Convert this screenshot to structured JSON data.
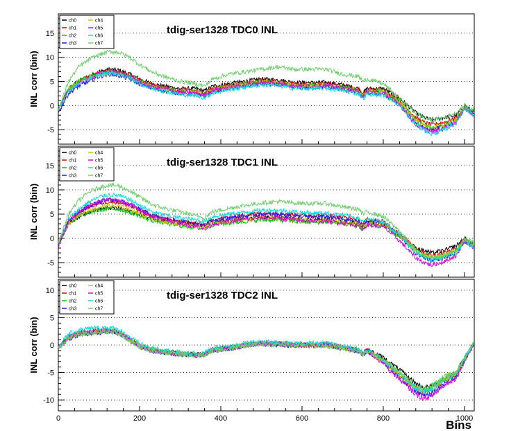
{
  "chart_data": [
    {
      "type": "line",
      "title": "tdig-ser1328 TDC0 INL",
      "ylabel": "INL corr (bin)",
      "xlabel": "",
      "xlim": [
        0,
        1024
      ],
      "ylim": [
        -8,
        19
      ],
      "yticks": [
        -5,
        0,
        5,
        10,
        15
      ],
      "xticks": [
        0,
        200,
        400,
        600,
        800,
        1000
      ],
      "xtick_labels_shown": false,
      "legend": "top-left",
      "gridlines": "dotted horizontal at y ticks",
      "x": [
        0,
        25,
        50,
        75,
        100,
        125,
        150,
        175,
        200,
        230,
        260,
        300,
        340,
        360,
        380,
        420,
        460,
        500,
        540,
        580,
        620,
        660,
        700,
        740,
        750,
        760,
        800,
        840,
        880,
        900,
        920,
        950,
        980,
        1000,
        1024
      ],
      "series": [
        {
          "name": "ch0",
          "color": "#000000",
          "values": [
            -1,
            3.5,
            5,
            6,
            7,
            7.5,
            7.3,
            6.5,
            5.5,
            4.5,
            4,
            3.5,
            3.5,
            3,
            4,
            4.5,
            5,
            5.5,
            5.3,
            4.8,
            4.7,
            4.8,
            4.3,
            3.5,
            2.5,
            3.5,
            3.5,
            1.5,
            -1.5,
            -2.5,
            -3,
            -2.5,
            -2,
            0,
            -1.5
          ]
        },
        {
          "name": "ch1",
          "color": "#e00000",
          "values": [
            -1,
            3.5,
            5,
            6,
            6.8,
            7.3,
            7,
            6.3,
            5.2,
            4.3,
            3.8,
            3.2,
            3,
            2.6,
            3.6,
            4.2,
            4.7,
            5.2,
            5,
            4.5,
            4.4,
            4.5,
            4,
            3.3,
            2.3,
            3.3,
            3.2,
            1,
            -2.5,
            -3.5,
            -4,
            -3.5,
            -2.5,
            -0.5,
            -2
          ]
        },
        {
          "name": "ch2",
          "color": "#00c800",
          "values": [
            -1,
            3.5,
            5,
            6,
            6.6,
            7.1,
            6.8,
            6,
            5,
            4.1,
            3.6,
            3,
            2.8,
            2.4,
            3.4,
            4,
            4.5,
            5,
            4.8,
            4.3,
            4.2,
            4.3,
            3.8,
            3.1,
            2.1,
            3.1,
            3,
            0.8,
            -3,
            -4,
            -4.5,
            -4,
            -3,
            -0.5,
            -2
          ]
        },
        {
          "name": "ch3",
          "color": "#1a1aff",
          "values": [
            -1.5,
            2.5,
            4,
            5,
            6,
            6.5,
            6.2,
            5.5,
            4.5,
            3.6,
            3.1,
            2.5,
            2.3,
            1.9,
            2.9,
            3.5,
            4,
            4.5,
            4.3,
            3.8,
            3.7,
            3.8,
            3.3,
            2.6,
            1.6,
            2.6,
            2.4,
            0.2,
            -3.5,
            -4.5,
            -5,
            -4.3,
            -3.2,
            -0.5,
            -2
          ]
        },
        {
          "name": "ch4",
          "color": "#c8c800",
          "values": [
            -1,
            3.3,
            4.8,
            5.8,
            6.5,
            7,
            6.7,
            5.9,
            4.9,
            4,
            3.5,
            2.9,
            2.7,
            2.3,
            3.3,
            3.9,
            4.4,
            4.9,
            4.7,
            4.2,
            4.1,
            4.2,
            3.7,
            3,
            2,
            3,
            2.8,
            0.6,
            -3,
            -4,
            -4.5,
            -4,
            -3,
            -0.5,
            -2
          ]
        },
        {
          "name": "ch5",
          "color": "#e000e0",
          "values": [
            -1,
            3,
            4.5,
            5.5,
            6.5,
            7,
            6.8,
            6,
            5,
            4,
            3.5,
            2.8,
            2.6,
            2.2,
            3.2,
            3.8,
            4.3,
            4.8,
            4.6,
            4.1,
            4,
            4.1,
            3.6,
            2.9,
            1.9,
            2.9,
            2.6,
            0.3,
            -4,
            -5,
            -5.5,
            -4.8,
            -3.5,
            -0.5,
            -2
          ]
        },
        {
          "name": "ch6",
          "color": "#00e0e0",
          "values": [
            -1,
            3,
            4.5,
            5.6,
            6.3,
            6.8,
            6.5,
            5.7,
            4.6,
            3.5,
            3,
            2.3,
            2,
            1.6,
            2.6,
            3.3,
            3.8,
            4.3,
            4.1,
            3.6,
            3.5,
            3.6,
            3.1,
            2.4,
            1.4,
            2.4,
            2.2,
            0,
            -4,
            -5,
            -6,
            -5,
            -3.5,
            -0.5,
            -2
          ]
        },
        {
          "name": "ch7",
          "color": "#6ccf6c",
          "values": [
            -1,
            5,
            8,
            9.5,
            10.5,
            11.2,
            11,
            10,
            8.5,
            7,
            6,
            5,
            4.5,
            4,
            5.5,
            6.5,
            7,
            7.5,
            8,
            7.5,
            7.5,
            7.5,
            6.5,
            6,
            5,
            5.5,
            4.5,
            1.5,
            -1.5,
            -2.5,
            -3,
            -2.5,
            -1.5,
            0,
            -1
          ]
        }
      ]
    },
    {
      "type": "line",
      "title": "tdig-ser1328 TDC1 INL",
      "ylabel": "INL corr (bin)",
      "xlabel": "",
      "xlim": [
        0,
        1024
      ],
      "ylim": [
        -8,
        19
      ],
      "yticks": [
        -5,
        0,
        5,
        10,
        15
      ],
      "xticks": [
        0,
        200,
        400,
        600,
        800,
        1000
      ],
      "xtick_labels_shown": false,
      "legend": "top-left",
      "gridlines": "dotted horizontal at y ticks",
      "x": [
        0,
        25,
        50,
        75,
        100,
        125,
        150,
        175,
        200,
        230,
        260,
        300,
        340,
        360,
        380,
        420,
        460,
        500,
        540,
        580,
        620,
        660,
        700,
        740,
        750,
        760,
        800,
        840,
        880,
        900,
        920,
        950,
        980,
        1000,
        1024
      ],
      "series": [
        {
          "name": "ch0",
          "color": "#000000",
          "values": [
            -1,
            3,
            4.5,
            5.5,
            6,
            6.3,
            6.2,
            5.7,
            5,
            4.2,
            3.7,
            3.2,
            2.8,
            2.5,
            3.3,
            3.7,
            4,
            4.3,
            4.3,
            4,
            3.8,
            3.9,
            3.5,
            3,
            2.2,
            3.2,
            3,
            0.8,
            -2,
            -2.5,
            -3,
            -2.5,
            -1.5,
            0,
            -1.5
          ]
        },
        {
          "name": "ch1",
          "color": "#e00000",
          "values": [
            -1,
            3.5,
            5.2,
            6.5,
            7.2,
            7.6,
            7.4,
            6.7,
            5.7,
            4.6,
            4,
            3.5,
            3,
            2.8,
            3.8,
            4.4,
            4.8,
            5.2,
            5.2,
            4.9,
            4.7,
            4.8,
            4.4,
            3.8,
            3,
            3.8,
            3.5,
            1,
            -2,
            -3,
            -3.5,
            -3,
            -2,
            0,
            -1.5
          ]
        },
        {
          "name": "ch2",
          "color": "#00c800",
          "values": [
            -1,
            3,
            4.5,
            5.3,
            5.8,
            6.1,
            6,
            5.4,
            4.6,
            3.7,
            3.2,
            2.6,
            2.2,
            1.9,
            2.8,
            3.2,
            3.5,
            3.8,
            3.8,
            3.5,
            3.3,
            3.4,
            3,
            2.5,
            1.7,
            2.7,
            2.5,
            0.3,
            -2.5,
            -3.5,
            -4,
            -3.5,
            -2.5,
            -0.5,
            -1.5
          ]
        },
        {
          "name": "ch3",
          "color": "#1a1aff",
          "values": [
            -1.5,
            3.5,
            5.3,
            6.6,
            7.5,
            8,
            7.8,
            7,
            6,
            4.8,
            4.1,
            3.5,
            3,
            2.7,
            3.7,
            4.2,
            4.6,
            5,
            5,
            4.6,
            4.4,
            4.5,
            4,
            3.4,
            2.6,
            3.4,
            3,
            0.5,
            -3,
            -4,
            -4.5,
            -4,
            -3,
            -0.5,
            -2
          ]
        },
        {
          "name": "ch4",
          "color": "#c8c800",
          "values": [
            -1,
            3.2,
            4.8,
            5.8,
            6.4,
            6.8,
            6.6,
            6,
            5.1,
            4.1,
            3.5,
            3,
            2.6,
            2.3,
            3.2,
            3.6,
            3.9,
            4.2,
            4.2,
            3.9,
            3.7,
            3.8,
            3.4,
            2.9,
            2.1,
            3.1,
            2.9,
            0.6,
            -2.5,
            -3.5,
            -4,
            -3.5,
            -2.5,
            -0.5,
            -1.5
          ]
        },
        {
          "name": "ch5",
          "color": "#e000e0",
          "values": [
            -1.5,
            3.5,
            5.5,
            6.8,
            7.6,
            8,
            7.8,
            7,
            5.9,
            4.6,
            3.9,
            3.1,
            2.5,
            2.1,
            3,
            3.5,
            3.9,
            4.2,
            4.2,
            3.8,
            3.6,
            3.6,
            3.2,
            2.6,
            1.8,
            2.8,
            2.4,
            -0.5,
            -4,
            -5,
            -5.5,
            -4.8,
            -3.5,
            -0.5,
            -2
          ]
        },
        {
          "name": "ch6",
          "color": "#00e0e0",
          "values": [
            -1,
            4,
            6,
            7.5,
            8.5,
            9,
            8.8,
            8,
            6.8,
            5.5,
            4.8,
            4.2,
            3.8,
            3.5,
            4.5,
            5,
            5.4,
            5.8,
            5.8,
            5.5,
            5.2,
            5.2,
            4.8,
            4.2,
            3.3,
            4,
            3.5,
            0.8,
            -3,
            -4,
            -4.5,
            -4,
            -3,
            -0.5,
            -2
          ]
        },
        {
          "name": "ch7",
          "color": "#6ccf6c",
          "values": [
            -1,
            5,
            7.8,
            9.5,
            10.5,
            11,
            10.8,
            9.8,
            8.5,
            7,
            6.2,
            5.5,
            4.6,
            4.3,
            5.5,
            6.2,
            6.8,
            7.3,
            7.6,
            7.3,
            7.2,
            7.2,
            6.5,
            6,
            5,
            5.5,
            4.5,
            1.5,
            -2.5,
            -3.5,
            -4,
            -3.5,
            -2.5,
            0,
            -1
          ]
        }
      ]
    },
    {
      "type": "line",
      "title": "tdig-ser1328 TDC2 INL",
      "ylabel": "INL corr (bin)",
      "xlabel": "Bins",
      "xlim": [
        0,
        1024
      ],
      "ylim": [
        -12,
        12
      ],
      "yticks": [
        -10,
        -5,
        0,
        5,
        10
      ],
      "xticks": [
        0,
        200,
        400,
        600,
        800,
        1000
      ],
      "xtick_labels_shown": true,
      "legend": "top-left",
      "gridlines": "dotted horizontal at y ticks",
      "x": [
        0,
        25,
        50,
        75,
        100,
        125,
        150,
        175,
        200,
        230,
        260,
        300,
        340,
        360,
        380,
        420,
        460,
        500,
        540,
        580,
        620,
        660,
        700,
        740,
        750,
        760,
        800,
        840,
        880,
        900,
        920,
        950,
        980,
        1000,
        1024
      ],
      "series": [
        {
          "name": "ch0",
          "color": "#000000",
          "values": [
            -0.5,
            1.5,
            2,
            2.3,
            2.4,
            2.6,
            2.2,
            1,
            -0.2,
            -0.8,
            -1.2,
            -1.5,
            -1.7,
            -1.6,
            -0.8,
            -0.5,
            0,
            0.4,
            0.3,
            0.1,
            0.1,
            0.1,
            -0.4,
            -1,
            -1.6,
            -0.8,
            -2.3,
            -4.5,
            -7,
            -7.8,
            -7.5,
            -6,
            -5,
            -2.5,
            0.5
          ]
        },
        {
          "name": "ch1",
          "color": "#e00000",
          "values": [
            -0.5,
            1.5,
            2.1,
            2.4,
            2.6,
            2.7,
            2.3,
            1.1,
            -0.1,
            -0.8,
            -1.2,
            -1.5,
            -1.7,
            -1.6,
            -0.8,
            -0.5,
            0,
            0.4,
            0.3,
            0.1,
            0.1,
            0.1,
            -0.4,
            -1,
            -1.6,
            -0.9,
            -2.8,
            -5.5,
            -8,
            -8.8,
            -8.3,
            -6.5,
            -5.5,
            -2.5,
            0.5
          ]
        },
        {
          "name": "ch2",
          "color": "#00c800",
          "values": [
            -0.5,
            1.5,
            2,
            2.3,
            2.5,
            2.6,
            2.2,
            1,
            -0.2,
            -0.9,
            -1.3,
            -1.6,
            -1.8,
            -1.7,
            -0.9,
            -0.6,
            0,
            0.3,
            0.2,
            0,
            0,
            0,
            -0.5,
            -1.1,
            -1.7,
            -1,
            -2.8,
            -5.3,
            -7.8,
            -8.3,
            -7.5,
            -6,
            -5,
            -2.5,
            0.5
          ]
        },
        {
          "name": "ch3",
          "color": "#1a1aff",
          "values": [
            -0.5,
            1.2,
            1.8,
            2.1,
            2.3,
            2.5,
            2.1,
            0.9,
            -0.3,
            -1,
            -1.4,
            -1.7,
            -1.9,
            -1.8,
            -1,
            -0.7,
            -0.1,
            0.2,
            0.1,
            -0.1,
            -0.1,
            -0.1,
            -0.6,
            -1.2,
            -1.8,
            -1.1,
            -3,
            -5.8,
            -8.5,
            -9.3,
            -8.8,
            -7,
            -5.8,
            -2.8,
            0.3
          ]
        },
        {
          "name": "ch4",
          "color": "#c8c800",
          "values": [
            -0.5,
            1.4,
            2,
            2.3,
            2.4,
            2.6,
            2.2,
            1,
            -0.2,
            -0.9,
            -1.3,
            -1.6,
            -1.8,
            -1.7,
            -0.9,
            -0.6,
            0,
            0.3,
            0.2,
            0,
            0,
            0,
            -0.5,
            -1.1,
            -1.7,
            -1,
            -2.9,
            -5.5,
            -8,
            -8.6,
            -8,
            -6.3,
            -5.3,
            -2.5,
            0.8
          ]
        },
        {
          "name": "ch5",
          "color": "#e000e0",
          "values": [
            -0.5,
            1.4,
            2.1,
            2.4,
            2.6,
            2.7,
            2.3,
            1.1,
            -0.2,
            -0.9,
            -1.3,
            -1.6,
            -1.8,
            -1.7,
            -0.9,
            -0.6,
            0,
            0.3,
            0.2,
            0,
            0,
            0,
            -0.5,
            -1.1,
            -1.7,
            -1.1,
            -3.3,
            -6.3,
            -9,
            -9.8,
            -9.3,
            -7.3,
            -6,
            -2.8,
            0.3
          ]
        },
        {
          "name": "ch6",
          "color": "#00e0e0",
          "values": [
            -0.3,
            2,
            2.7,
            3,
            3.1,
            3.2,
            2.8,
            1.5,
            0.2,
            -0.6,
            -1,
            -1.3,
            -1.5,
            -1.4,
            -0.6,
            -0.3,
            0.3,
            0.6,
            0.5,
            0.3,
            0.3,
            0.3,
            -0.2,
            -0.8,
            -1.4,
            -0.8,
            -2.8,
            -5.3,
            -7.8,
            -8.5,
            -8,
            -6.3,
            -5.3,
            -2.3,
            0.5
          ]
        },
        {
          "name": "ch7",
          "color": "#6ccf6c",
          "values": [
            -0.5,
            1.3,
            1.9,
            2.2,
            2.3,
            2.5,
            2.1,
            0.9,
            -0.3,
            -1,
            -1.4,
            -1.7,
            -1.9,
            -1.8,
            -1,
            -0.7,
            -0.1,
            0.2,
            0.1,
            -0.1,
            -0.1,
            -0.1,
            -0.6,
            -1.2,
            -1.8,
            -1.1,
            -2.6,
            -5,
            -7.5,
            -8,
            -7.3,
            -5.8,
            -4.8,
            -2.3,
            0.5
          ]
        }
      ]
    }
  ]
}
